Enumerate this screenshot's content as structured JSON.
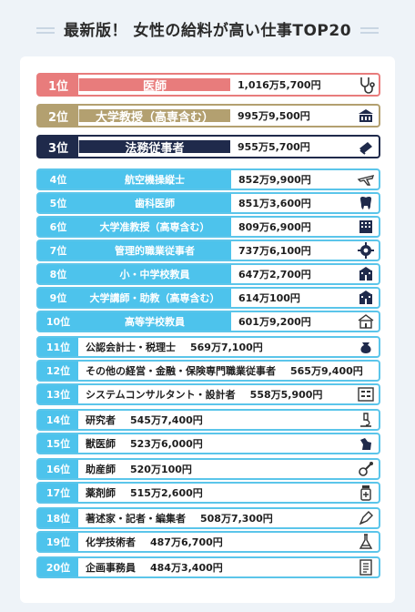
{
  "title": "最新版！ 女性の給料が高い仕事TOP20",
  "colors": {
    "gold1": "#e87c7c",
    "gold2": "#b3a070",
    "gold3": "#1f2a4b",
    "accent": "#4dc3ec"
  },
  "ranking": [
    {
      "rank": "1位",
      "job": "医師",
      "salary": "1,016万5,700円",
      "icon": "stethoscope-icon"
    },
    {
      "rank": "2位",
      "job": "大学教授（高専含む）",
      "salary": "995万9,500円",
      "icon": "university-icon"
    },
    {
      "rank": "3位",
      "job": "法務従事者",
      "salary": "955万5,700円",
      "icon": "law-book-icon"
    },
    {
      "rank": "4位",
      "job": "航空機操縦士",
      "salary": "852万9,900円",
      "icon": "airplane-icon"
    },
    {
      "rank": "5位",
      "job": "歯科医師",
      "salary": "851万3,600円",
      "icon": "tooth-icon"
    },
    {
      "rank": "6位",
      "job": "大学准教授（高専含む）",
      "salary": "809万6,900円",
      "icon": "building-icon"
    },
    {
      "rank": "7位",
      "job": "管理的職業従事者",
      "salary": "737万6,100円",
      "icon": "gear-icon"
    },
    {
      "rank": "8位",
      "job": "小・中学校教員",
      "salary": "647万2,700円",
      "icon": "school-icon"
    },
    {
      "rank": "9位",
      "job": "大学講師・助教（高専含む）",
      "salary": "614万100円",
      "icon": "school-icon"
    },
    {
      "rank": "10位",
      "job": "高等学校教員",
      "salary": "601万9,200円",
      "icon": "schoolhouse-icon"
    },
    {
      "rank": "11位",
      "job": "公認会計士・税理士",
      "salary": "569万7,100円",
      "icon": "money-pouch-icon"
    },
    {
      "rank": "12位",
      "job": "その他の経営・金融・保険専門職業従事者",
      "salary": "565万9,400円",
      "icon": ""
    },
    {
      "rank": "13位",
      "job": "システムコンサルタント・設計者",
      "salary": "558万5,900円",
      "icon": "system-board-icon"
    },
    {
      "rank": "14位",
      "job": "研究者",
      "salary": "545万7,400円",
      "icon": "microscope-icon"
    },
    {
      "rank": "15位",
      "job": "獣医師",
      "salary": "523万6,000円",
      "icon": "dog-icon"
    },
    {
      "rank": "16位",
      "job": "助産師",
      "salary": "520万100円",
      "icon": "pacifier-icon"
    },
    {
      "rank": "17位",
      "job": "薬剤師",
      "salary": "515万2,600円",
      "icon": "medicine-bottle-icon"
    },
    {
      "rank": "18位",
      "job": "著述家・記者・編集者",
      "salary": "508万7,300円",
      "icon": "pen-nib-icon"
    },
    {
      "rank": "19位",
      "job": "化学技術者",
      "salary": "487万6,700円",
      "icon": "flask-icon"
    },
    {
      "rank": "20位",
      "job": "企画事務員",
      "salary": "484万3,400円",
      "icon": "document-icon"
    }
  ]
}
